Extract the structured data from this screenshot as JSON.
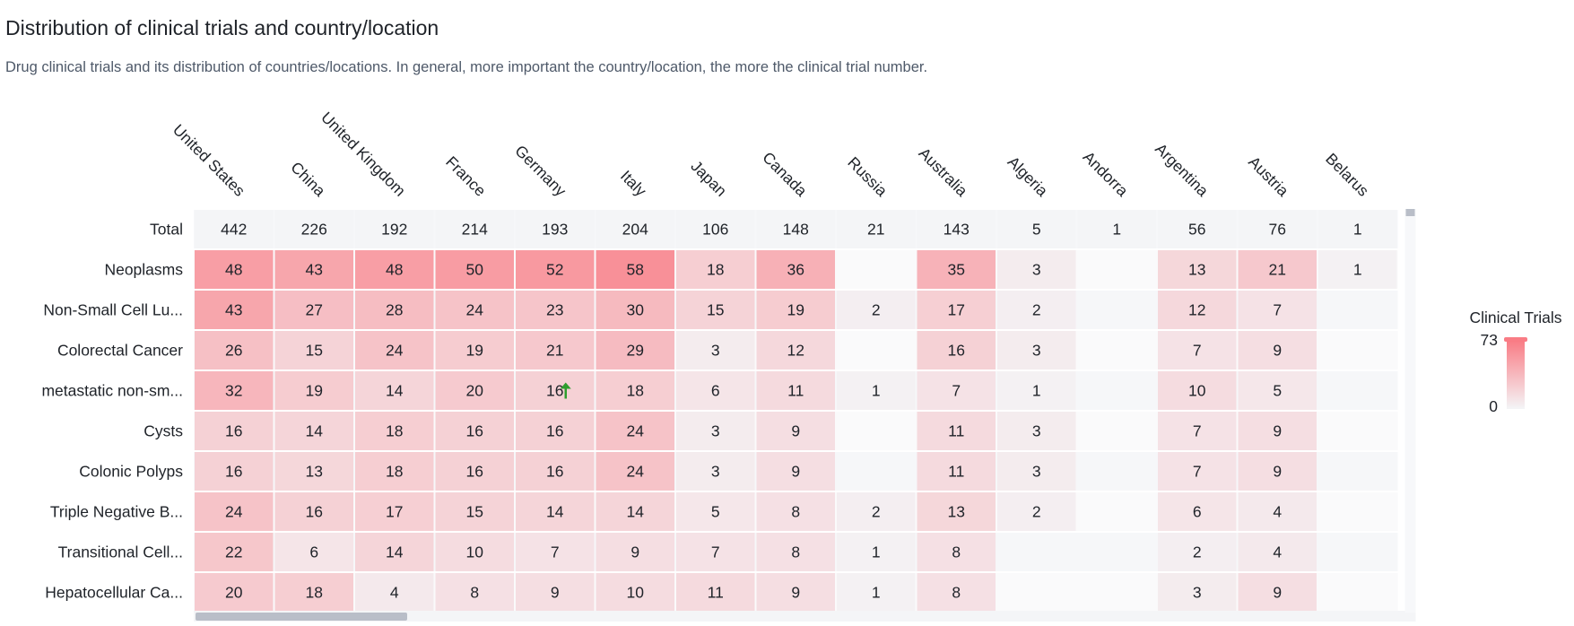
{
  "title": "Distribution of clinical trials and country/location",
  "subtitle": "Drug clinical trials and its distribution of countries/locations. In general, more important the country/location, the more the clinical trial number.",
  "colors": {
    "max": "#f97c85",
    "min": "#f4f5f7",
    "total_row": "#f4f5f7",
    "arrow": "#2e9e2e",
    "scrollbar": "#b9bec8"
  },
  "chart_data": {
    "type": "heatmap",
    "columns": [
      "United States",
      "China",
      "United Kingdom",
      "France",
      "Germany",
      "Italy",
      "Japan",
      "Canada",
      "Russia",
      "Australia",
      "Algeria",
      "Andorra",
      "Argentina",
      "Austria",
      "Belarus"
    ],
    "total_label": "Total",
    "totals": [
      442,
      226,
      192,
      214,
      193,
      204,
      106,
      148,
      21,
      143,
      5,
      1,
      56,
      76,
      1
    ],
    "rows": [
      {
        "label": "Neoplasms",
        "values": [
          48,
          43,
          48,
          50,
          52,
          58,
          18,
          36,
          null,
          35,
          3,
          null,
          13,
          21,
          1
        ]
      },
      {
        "label": "Non-Small Cell Lu...",
        "values": [
          43,
          27,
          28,
          24,
          23,
          30,
          15,
          19,
          2,
          17,
          2,
          null,
          12,
          7,
          null
        ]
      },
      {
        "label": "Colorectal Cancer",
        "values": [
          26,
          15,
          24,
          19,
          21,
          29,
          3,
          12,
          null,
          16,
          3,
          null,
          7,
          9,
          null
        ]
      },
      {
        "label": "metastatic non-sm...",
        "values": [
          32,
          19,
          14,
          20,
          16,
          18,
          6,
          11,
          1,
          7,
          1,
          null,
          10,
          5,
          null
        ]
      },
      {
        "label": "Cysts",
        "values": [
          16,
          14,
          18,
          16,
          16,
          24,
          3,
          9,
          null,
          11,
          3,
          null,
          7,
          9,
          null
        ]
      },
      {
        "label": "Colonic Polyps",
        "values": [
          16,
          13,
          18,
          16,
          16,
          24,
          3,
          9,
          null,
          11,
          3,
          null,
          7,
          9,
          null
        ]
      },
      {
        "label": "Triple Negative B...",
        "values": [
          24,
          16,
          17,
          15,
          14,
          14,
          5,
          8,
          2,
          13,
          2,
          null,
          6,
          4,
          null
        ]
      },
      {
        "label": "Transitional Cell...",
        "values": [
          22,
          6,
          14,
          10,
          7,
          9,
          7,
          8,
          1,
          8,
          null,
          null,
          2,
          4,
          null
        ]
      },
      {
        "label": "Hepatocellular Ca...",
        "values": [
          20,
          18,
          4,
          8,
          9,
          10,
          11,
          9,
          1,
          8,
          null,
          null,
          3,
          9,
          null
        ]
      }
    ],
    "annotations": [
      {
        "row": 3,
        "col": 4,
        "symbol": "↑",
        "icon": "up-arrow-icon"
      }
    ],
    "legend": {
      "title": "Clinical Trials",
      "max": 73,
      "min": 0,
      "placement": "right"
    }
  }
}
